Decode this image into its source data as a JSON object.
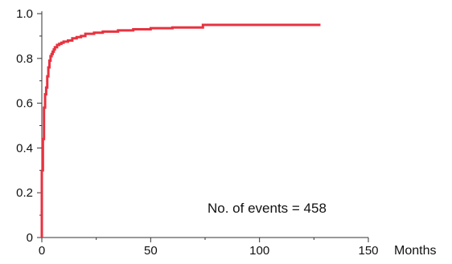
{
  "chart_data": {
    "type": "line",
    "step": true,
    "xlabel": "Months",
    "ylabel": "",
    "xlim": [
      0,
      150
    ],
    "ylim": [
      0,
      1.0
    ],
    "x_ticks": [
      0,
      50,
      100,
      150
    ],
    "y_ticks": [
      0,
      0.2,
      0.4,
      0.6,
      0.8,
      1.0
    ],
    "x_tick_labels": [
      "0",
      "50",
      "100",
      "150"
    ],
    "y_tick_labels": [
      "0",
      "0.2",
      "0.4",
      "0.6",
      "0.8",
      "1.0"
    ],
    "grid": false,
    "annotation": "No. of events = 458",
    "series": [
      {
        "color": "#e8323f",
        "x": [
          0,
          0.5,
          0.5,
          1,
          1,
          1.5,
          1.5,
          2,
          2,
          2.5,
          2.5,
          3,
          3,
          3.5,
          3.5,
          4,
          4,
          4.5,
          4.5,
          5,
          5,
          5.5,
          5.5,
          6,
          6,
          7,
          7,
          8,
          8,
          9,
          9,
          10,
          10,
          12,
          12,
          14,
          14,
          16,
          16,
          18,
          18,
          20,
          20,
          24,
          24,
          28,
          28,
          35,
          35,
          42,
          42,
          50,
          50,
          60,
          60,
          74,
          74,
          128
        ],
        "y": [
          0.3,
          0.3,
          0.44,
          0.44,
          0.58,
          0.58,
          0.64,
          0.64,
          0.67,
          0.67,
          0.72,
          0.72,
          0.76,
          0.76,
          0.79,
          0.79,
          0.81,
          0.81,
          0.82,
          0.82,
          0.83,
          0.83,
          0.84,
          0.84,
          0.85,
          0.85,
          0.86,
          0.86,
          0.865,
          0.865,
          0.87,
          0.87,
          0.875,
          0.875,
          0.88,
          0.88,
          0.89,
          0.89,
          0.895,
          0.895,
          0.9,
          0.9,
          0.91,
          0.91,
          0.915,
          0.915,
          0.92,
          0.92,
          0.925,
          0.925,
          0.93,
          0.93,
          0.935,
          0.935,
          0.938,
          0.938,
          0.95,
          0.95
        ]
      }
    ]
  }
}
